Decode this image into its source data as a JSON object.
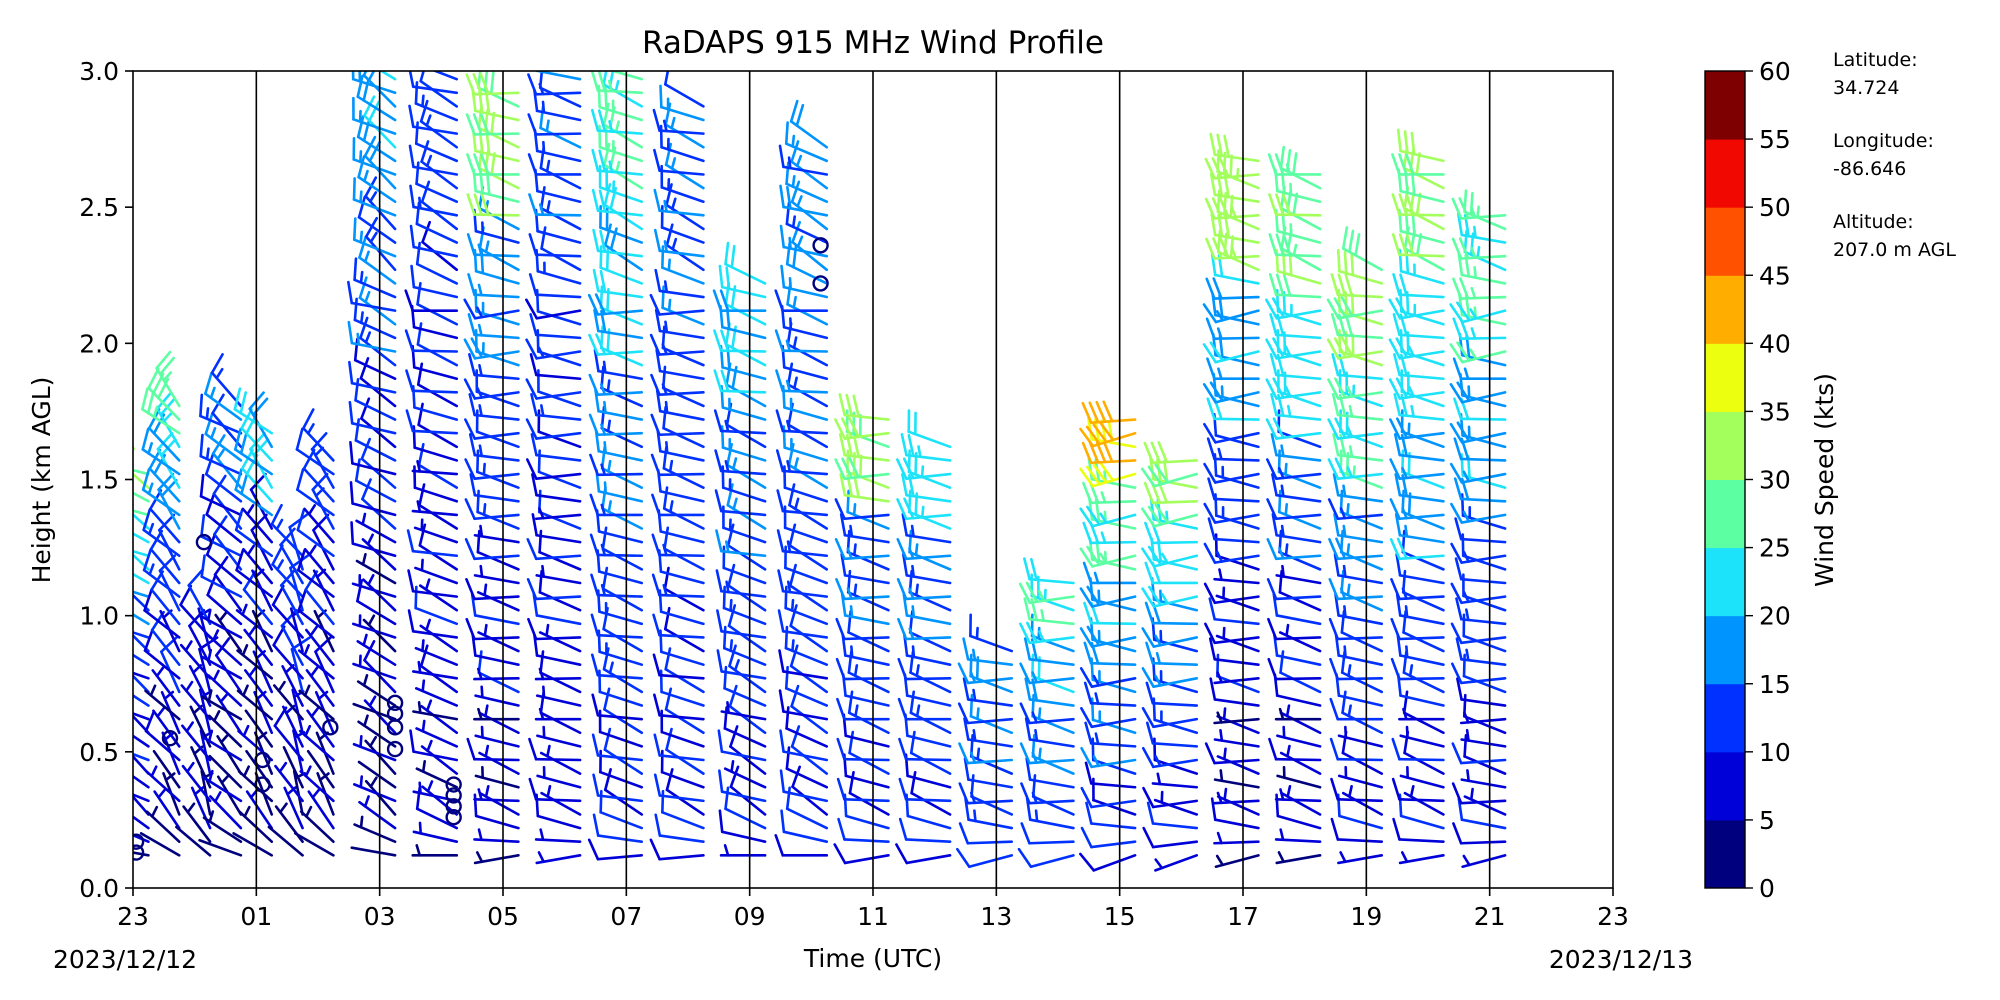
{
  "chart_data": {
    "type": "wind_barb_profile",
    "title": "RaDAPS 915 MHz Wind Profile",
    "xlabel": "Time (UTC)",
    "ylabel": "Height (km AGL)",
    "x_start_date_label": "2023/12/12",
    "x_end_date_label": "2023/12/13",
    "x_tick_labels": [
      "23",
      "01",
      "03",
      "05",
      "07",
      "09",
      "11",
      "13",
      "15",
      "17",
      "19",
      "21",
      "23"
    ],
    "y_tick_labels": [
      "0.0",
      "0.5",
      "1.0",
      "1.5",
      "2.0",
      "2.5",
      "3.0"
    ],
    "y_ticks": [
      0,
      0.5,
      1.0,
      1.5,
      2.0,
      2.5,
      3.0
    ],
    "ylim": [
      0,
      3.0
    ],
    "colorbar": {
      "label": "Wind Speed (kts)",
      "ticks": [
        "0",
        "5",
        "10",
        "15",
        "20",
        "25",
        "30",
        "35",
        "40",
        "45",
        "50",
        "55",
        "60"
      ],
      "colors": [
        "#00007f",
        "#0000d9",
        "#0031ff",
        "#0094ff",
        "#1ce3fa",
        "#5cffa2",
        "#a2ff5c",
        "#ecff0f",
        "#ffae00",
        "#ff5100",
        "#f10800",
        "#7f0000"
      ]
    },
    "station_info": [
      {
        "label": "Latitude:",
        "value": "34.724"
      },
      {
        "label": "Longitude:",
        "value": "-86.646"
      },
      {
        "label": "Altitude:",
        "value": "207.0 m AGL"
      }
    ],
    "grid": "vertical lines every 2 h",
    "barb_columns": [
      {
        "hour": 0.25,
        "top_km": 1.55,
        "speed": [
          6,
          8,
          10,
          14,
          22,
          28
        ],
        "direction": 300
      },
      {
        "hour": 0.75,
        "top_km": 1.8,
        "speed": [
          4,
          6,
          9,
          12,
          18,
          26
        ],
        "direction": 320
      },
      {
        "hour": 1.25,
        "top_km": 1.0,
        "speed": [
          4,
          5,
          7,
          9
        ],
        "direction": 330
      },
      {
        "hour": 1.75,
        "top_km": 1.8,
        "speed": [
          4,
          6,
          10,
          14
        ],
        "direction": 310
      },
      {
        "hour": 2.25,
        "top_km": 1.7,
        "speed": [
          3,
          5,
          8,
          20
        ],
        "direction": 320
      },
      {
        "hour": 2.75,
        "top_km": 1.25,
        "speed": [
          4,
          6,
          9,
          12
        ],
        "direction": 330
      },
      {
        "hour": 3.25,
        "top_km": 1.6,
        "speed": [
          4,
          6,
          8,
          12
        ],
        "direction": 320
      },
      {
        "hour": 4.25,
        "top_km": 3.0,
        "speed": [
          4,
          6,
          10,
          14,
          18
        ],
        "direction": 300
      },
      {
        "hour": 5.25,
        "top_km": 3.0,
        "speed": [
          6,
          8,
          10,
          12
        ],
        "direction": 290
      },
      {
        "hour": 6.25,
        "top_km": 2.95,
        "speed": [
          6,
          8,
          12,
          16,
          30
        ],
        "direction": 280
      },
      {
        "hour": 7.25,
        "top_km": 3.0,
        "speed": [
          7,
          9,
          11,
          13
        ],
        "direction": 280
      },
      {
        "hour": 8.25,
        "top_km": 3.0,
        "speed": [
          10,
          12,
          15,
          20,
          25
        ],
        "direction": 285
      },
      {
        "hour": 9.25,
        "top_km": 2.9,
        "speed": [
          10,
          12,
          14
        ],
        "direction": 285
      },
      {
        "hour": 10.25,
        "top_km": 2.25,
        "speed": [
          9,
          12,
          14,
          20
        ],
        "direction": 290
      },
      {
        "hour": 11.25,
        "top_km": 2.75,
        "speed": [
          10,
          12,
          14,
          16
        ],
        "direction": 290
      },
      {
        "hour": 12.25,
        "top_km": 1.75,
        "speed": [
          10,
          12,
          14,
          30
        ],
        "direction": 280
      },
      {
        "hour": 13.25,
        "top_km": 1.65,
        "speed": [
          10,
          12,
          15,
          22
        ],
        "direction": 280
      },
      {
        "hour": 14.25,
        "top_km": 0.9,
        "speed": [
          12,
          14,
          16
        ],
        "direction": 275
      },
      {
        "hour": 15.25,
        "top_km": 1.15,
        "speed": [
          12,
          15,
          18,
          24
        ],
        "direction": 275
      },
      {
        "hour": 16.25,
        "top_km": 1.75,
        "speed": [
          10,
          14,
          18,
          25,
          40
        ],
        "direction": 270
      },
      {
        "hour": 17.25,
        "top_km": 1.6,
        "speed": [
          8,
          12,
          16,
          22,
          30
        ],
        "direction": 270
      },
      {
        "hour": 18.25,
        "top_km": 2.7,
        "speed": [
          6,
          8,
          12,
          18,
          32
        ],
        "direction": 275
      },
      {
        "hour": 19.25,
        "top_km": 2.65,
        "speed": [
          6,
          9,
          14,
          22,
          28
        ],
        "direction": 280
      },
      {
        "hour": 20.25,
        "top_km": 2.3,
        "speed": [
          8,
          12,
          16,
          24,
          30
        ],
        "direction": 280
      },
      {
        "hour": 21.25,
        "top_km": 2.7,
        "speed": [
          8,
          12,
          18,
          22,
          30
        ],
        "direction": 280
      },
      {
        "hour": 22.25,
        "top_km": 2.5,
        "speed": [
          8,
          12,
          18,
          25
        ],
        "direction": 275
      }
    ],
    "calm_markers": [
      {
        "hour": 0.05,
        "km": 0.13
      },
      {
        "hour": 0.05,
        "km": 0.17
      },
      {
        "hour": 0.6,
        "km": 0.55
      },
      {
        "hour": 1.15,
        "km": 1.27
      },
      {
        "hour": 2.1,
        "km": 0.38
      },
      {
        "hour": 2.1,
        "km": 0.47
      },
      {
        "hour": 3.2,
        "km": 0.59
      },
      {
        "hour": 4.25,
        "km": 0.51
      },
      {
        "hour": 4.25,
        "km": 0.59
      },
      {
        "hour": 4.25,
        "km": 0.64
      },
      {
        "hour": 4.25,
        "km": 0.68
      },
      {
        "hour": 5.2,
        "km": 0.26
      },
      {
        "hour": 5.2,
        "km": 0.3
      },
      {
        "hour": 5.2,
        "km": 0.34
      },
      {
        "hour": 5.2,
        "km": 0.38
      },
      {
        "hour": 11.15,
        "km": 2.22
      },
      {
        "hour": 11.15,
        "km": 2.36
      }
    ]
  }
}
